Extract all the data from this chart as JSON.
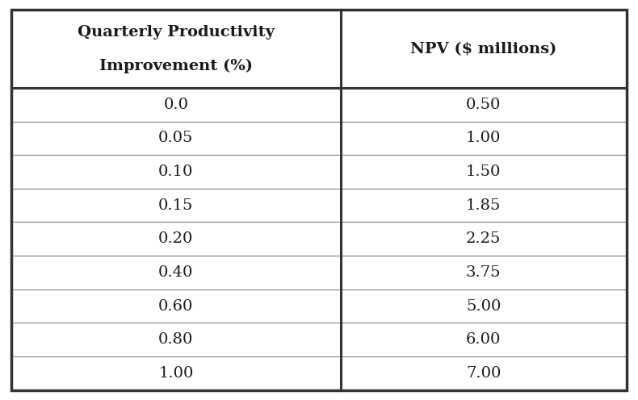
{
  "col_headers": [
    "Quarterly Productivity\n\nImprovement (%)",
    "NPV ($ millions)"
  ],
  "rows": [
    [
      "0.0",
      "0.50"
    ],
    [
      "0.05",
      "1.00"
    ],
    [
      "0.10",
      "1.50"
    ],
    [
      "0.15",
      "1.85"
    ],
    [
      "0.20",
      "2.25"
    ],
    [
      "0.40",
      "3.75"
    ],
    [
      "0.60",
      "5.00"
    ],
    [
      "0.80",
      "6.00"
    ],
    [
      "1.00",
      "7.00"
    ]
  ],
  "bg_color": "#ffffff",
  "header_bg": "#ffffff",
  "cell_bg": "#ffffff",
  "text_color": "#1a1a1a",
  "border_color": "#333333",
  "thin_line_color": "#888888",
  "figsize": [
    7.9,
    4.96
  ],
  "dpi": 100,
  "header_fontsize": 14,
  "data_fontsize": 14
}
